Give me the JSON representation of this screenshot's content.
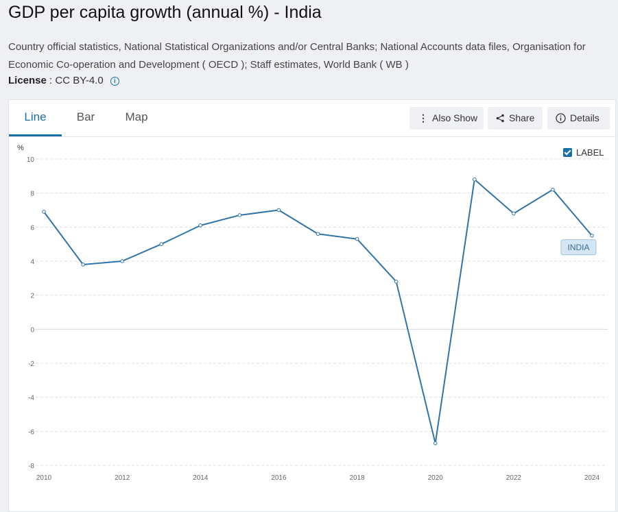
{
  "header": {
    "title": "GDP per capita growth (annual %) - India",
    "source": "Country official statistics, National Statistical Organizations and/or Central Banks; National Accounts data files, Organisation for Economic Co-operation and Development ( OECD ); Staff estimates, World Bank ( WB )",
    "license_label": "License",
    "license_value": ": CC BY-4.0"
  },
  "tabs": [
    {
      "label": "Line",
      "active": true
    },
    {
      "label": "Bar",
      "active": false
    },
    {
      "label": "Map",
      "active": false
    }
  ],
  "toolbar": {
    "also_show": "Also Show",
    "share": "Share",
    "details": "Details"
  },
  "label_toggle": {
    "text": "LABEL",
    "checked": true
  },
  "colors": {
    "accent": "#1a6fa6",
    "line": "#2f74a8",
    "label_bg": "#d4e6f3"
  },
  "chart_data": {
    "type": "line",
    "ylabel": "%",
    "ylim": [
      -8,
      10
    ],
    "yticks": [
      10,
      8,
      6,
      4,
      2,
      0,
      -2,
      -4,
      -6,
      -8
    ],
    "xlim": [
      2010,
      2024
    ],
    "xticks": [
      2010,
      2012,
      2014,
      2016,
      2018,
      2020,
      2022,
      2024
    ],
    "grid": true,
    "series": [
      {
        "name": "INDIA",
        "x": [
          2010,
          2011,
          2012,
          2013,
          2014,
          2015,
          2016,
          2017,
          2018,
          2019,
          2020,
          2021,
          2022,
          2023,
          2024
        ],
        "values": [
          6.9,
          3.8,
          4.0,
          5.0,
          6.1,
          6.7,
          7.0,
          5.6,
          5.3,
          2.8,
          -6.7,
          8.8,
          6.8,
          8.2,
          5.5
        ]
      }
    ]
  }
}
